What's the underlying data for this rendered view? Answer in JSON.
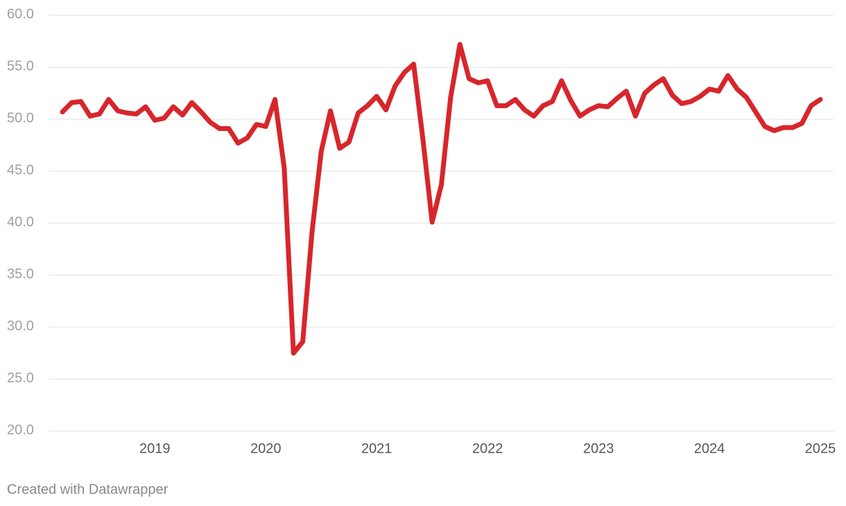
{
  "chart_data": {
    "type": "line",
    "categories": [
      null,
      null,
      null,
      null,
      null,
      null,
      null,
      null,
      null,
      null,
      "2019",
      null,
      null,
      null,
      null,
      null,
      null,
      null,
      null,
      null,
      null,
      null,
      "2020",
      null,
      null,
      null,
      null,
      null,
      null,
      null,
      null,
      null,
      null,
      null,
      "2021",
      null,
      null,
      null,
      null,
      null,
      null,
      null,
      null,
      null,
      null,
      null,
      "2022",
      null,
      null,
      null,
      null,
      null,
      null,
      null,
      null,
      null,
      null,
      null,
      "2023",
      null,
      null,
      null,
      null,
      null,
      null,
      null,
      null,
      null,
      null,
      null,
      "2024",
      null,
      null,
      null,
      null,
      null,
      null,
      null,
      null,
      null,
      null,
      null,
      "2025"
    ],
    "values": [
      50.7,
      51.6,
      51.7,
      50.3,
      50.5,
      51.9,
      50.8,
      50.6,
      50.5,
      51.2,
      49.9,
      50.1,
      51.2,
      50.4,
      51.6,
      50.7,
      49.7,
      49.1,
      49.1,
      47.7,
      48.2,
      49.5,
      49.3,
      51.9,
      45.3,
      27.5,
      28.6,
      39.1,
      46.9,
      50.8,
      47.2,
      47.8,
      50.6,
      51.3,
      52.2,
      50.9,
      53.2,
      54.5,
      55.3,
      48.1,
      40.1,
      43.7,
      52.1,
      57.2,
      53.9,
      53.5,
      53.7,
      51.3,
      51.3,
      51.9,
      50.9,
      50.3,
      51.3,
      51.7,
      53.7,
      51.8,
      50.3,
      50.9,
      51.3,
      51.2,
      52.0,
      52.7,
      50.3,
      52.5,
      53.3,
      53.9,
      52.3,
      51.5,
      51.7,
      52.2,
      52.9,
      52.7,
      54.2,
      52.9,
      52.1,
      50.7,
      49.3,
      48.9,
      49.2,
      49.2,
      49.6,
      51.3,
      51.9
    ],
    "color": "#d7262b",
    "ylim": [
      20,
      60
    ],
    "yticks": [
      {
        "value": 20,
        "label": "20.0"
      },
      {
        "value": 25,
        "label": "25.0"
      },
      {
        "value": 30,
        "label": "30.0"
      },
      {
        "value": 35,
        "label": "35.0"
      },
      {
        "value": 40,
        "label": "40.0"
      },
      {
        "value": 45,
        "label": "45.0"
      },
      {
        "value": 50,
        "label": "50.0"
      },
      {
        "value": 55,
        "label": "55.0"
      },
      {
        "value": 60,
        "label": "60.0"
      }
    ],
    "grid": true,
    "footer": "Created with Datawrapper"
  }
}
